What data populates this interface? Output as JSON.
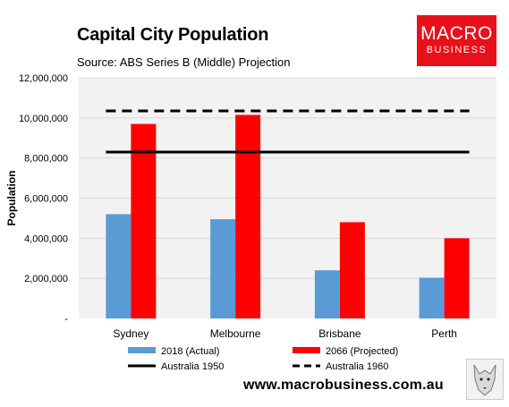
{
  "title": "Capital City Population",
  "subtitle": "Source: ABS Series B (Middle) Projection",
  "logo": {
    "line1": "MACRO",
    "line2": "BUSINESS"
  },
  "website": "www.macrobusiness.com.au",
  "colors": {
    "actual": "#5b9bd5",
    "projected": "#ff0000",
    "plot_bg": "#f2f2f2",
    "grid": "#d9d9d9",
    "reference": "#000000",
    "logo_bg": "#e8101a"
  },
  "chart_data": {
    "type": "bar",
    "categories": [
      "Sydney",
      "Melbourne",
      "Brisbane",
      "Perth"
    ],
    "series": [
      {
        "name": "2018 (Actual)",
        "type": "bar",
        "values": [
          5200000,
          4950000,
          2400000,
          2030000
        ]
      },
      {
        "name": "2066 (Projected)",
        "type": "bar",
        "values": [
          9700000,
          10150000,
          4800000,
          4000000
        ]
      }
    ],
    "reference_lines": [
      {
        "name": "Australia 1950",
        "value": 8300000,
        "style": "solid"
      },
      {
        "name": "Australia 1960",
        "value": 10350000,
        "style": "dashed"
      }
    ],
    "ylabel": "Population",
    "ylim": [
      0,
      12000000
    ],
    "yticks": [
      0,
      2000000,
      4000000,
      6000000,
      8000000,
      10000000,
      12000000
    ],
    "ytick_labels": [
      "-",
      "2,000,000",
      "4,000,000",
      "6,000,000",
      "8,000,000",
      "10,000,000",
      "12,000,000"
    ],
    "grid": true,
    "legend_position": "bottom"
  }
}
